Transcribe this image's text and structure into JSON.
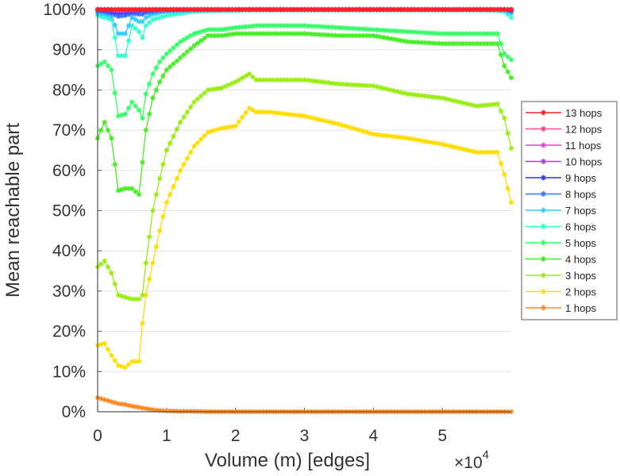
{
  "chart_data": {
    "type": "line",
    "title": "",
    "xlabel": "Volume (m) [edges]",
    "ylabel": "Mean reachable part",
    "x_multiplier_label": "×10",
    "x_multiplier_exp": "4",
    "xlim": [
      0,
      6.0
    ],
    "ylim": [
      0,
      100
    ],
    "x_ticks": [
      "0",
      "1",
      "2",
      "3",
      "4",
      "5"
    ],
    "x_tick_values": [
      0,
      1,
      2,
      3,
      4,
      5
    ],
    "y_ticks": [
      "0%",
      "10%",
      "20%",
      "30%",
      "40%",
      "50%",
      "60%",
      "70%",
      "80%",
      "90%",
      "100%"
    ],
    "y_tick_values": [
      0,
      10,
      20,
      30,
      40,
      50,
      60,
      70,
      80,
      90,
      100
    ],
    "grid": true,
    "legend_position": "right",
    "x": [
      0,
      0.1,
      0.2,
      0.3,
      0.4,
      0.5,
      0.6,
      0.65,
      0.7,
      0.8,
      0.9,
      1.0,
      1.2,
      1.4,
      1.6,
      1.8,
      2.0,
      2.2,
      2.3,
      2.5,
      3.0,
      3.5,
      4.0,
      4.5,
      5.0,
      5.5,
      5.8,
      5.9,
      6.0
    ],
    "series": [
      {
        "name": "13 hops",
        "color": "#ff2020",
        "values": [
          100,
          100,
          100,
          100,
          100,
          100,
          100,
          100,
          100,
          100,
          100,
          100,
          100,
          100,
          100,
          100,
          100,
          100,
          100,
          100,
          100,
          100,
          100,
          100,
          100,
          100,
          100,
          100,
          100
        ]
      },
      {
        "name": "12 hops",
        "color": "#ff4b8c",
        "values": [
          100,
          100,
          100,
          100,
          100,
          100,
          100,
          100,
          100,
          100,
          100,
          100,
          100,
          100,
          100,
          100,
          100,
          100,
          100,
          100,
          100,
          100,
          100,
          100,
          100,
          100,
          100,
          100,
          100
        ]
      },
      {
        "name": "11 hops",
        "color": "#ff33ee",
        "values": [
          100,
          100,
          100,
          100,
          100,
          100,
          100,
          100,
          100,
          100,
          100,
          100,
          100,
          100,
          100,
          100,
          100,
          100,
          100,
          100,
          100,
          100,
          100,
          100,
          100,
          100,
          100,
          100,
          100
        ]
      },
      {
        "name": "10 hops",
        "color": "#a040ff",
        "values": [
          100,
          100,
          99.8,
          99.6,
          99.7,
          99.8,
          99.8,
          99.9,
          100,
          100,
          100,
          100,
          100,
          100,
          100,
          100,
          100,
          100,
          100,
          100,
          100,
          100,
          100,
          100,
          100,
          100,
          100,
          100,
          100
        ]
      },
      {
        "name": "9 hops",
        "color": "#3333ff",
        "values": [
          100,
          99.8,
          99.5,
          99.2,
          99.3,
          99.6,
          99.6,
          99.7,
          99.8,
          99.9,
          100,
          100,
          100,
          100,
          100,
          100,
          100,
          100,
          100,
          100,
          100,
          100,
          100,
          100,
          100,
          100,
          100,
          100,
          99.8
        ]
      },
      {
        "name": "8 hops",
        "color": "#3377ff",
        "values": [
          99.6,
          99.4,
          99,
          98.3,
          98.5,
          99,
          98.8,
          98.8,
          99.2,
          99.5,
          99.7,
          99.8,
          99.9,
          100,
          100,
          100,
          100,
          100,
          100,
          100,
          100,
          100,
          100,
          100,
          100,
          100,
          100,
          100,
          99.6
        ]
      },
      {
        "name": "7 hops",
        "color": "#33ccff",
        "values": [
          99,
          98.8,
          98.3,
          94,
          94,
          98,
          97,
          97,
          98,
          98.8,
          99.2,
          99.5,
          99.7,
          99.8,
          99.9,
          99.9,
          100,
          100,
          100,
          100,
          100,
          100,
          100,
          100,
          100,
          100,
          100,
          99.8,
          99
        ]
      },
      {
        "name": "6 hops",
        "color": "#33ffcc",
        "values": [
          98.5,
          98,
          97.5,
          88.5,
          88.5,
          96,
          94.5,
          93,
          96,
          97.5,
          98,
          98.5,
          99,
          99.5,
          99.6,
          99.7,
          99.7,
          99.8,
          99.8,
          99.8,
          99.8,
          99.8,
          99.8,
          99.8,
          99.8,
          99.8,
          99.7,
          99.5,
          98
        ]
      },
      {
        "name": "5 hops",
        "color": "#33ff66",
        "values": [
          86,
          87,
          85,
          73.5,
          74,
          77,
          75,
          73,
          79,
          84,
          87,
          89,
          92,
          94,
          95,
          95,
          95.5,
          95.8,
          96,
          96,
          96,
          95.5,
          95,
          94.5,
          94,
          94,
          94,
          89,
          87.5
        ]
      },
      {
        "name": "4 hops",
        "color": "#44ee22",
        "values": [
          68,
          72,
          68,
          55,
          55.5,
          55.5,
          54,
          62,
          70,
          78,
          82,
          85,
          88,
          91,
          93.5,
          93.5,
          94,
          94,
          94,
          94,
          94,
          93.5,
          93.5,
          92,
          91.5,
          91.5,
          91.5,
          86,
          83
        ]
      },
      {
        "name": "3 hops",
        "color": "#99ee11",
        "values": [
          36,
          37.5,
          34.5,
          29,
          28.5,
          28,
          28,
          29,
          37,
          50,
          58,
          65,
          72,
          77,
          80,
          80.5,
          82,
          84,
          82.5,
          82.5,
          82.5,
          81.5,
          81,
          79,
          78,
          76,
          76.5,
          73,
          65.5
        ]
      },
      {
        "name": "2 hops",
        "color": "#ffdd00",
        "values": [
          16.5,
          17,
          14,
          11.5,
          11,
          12.5,
          12.5,
          22,
          29,
          37,
          45,
          52,
          60,
          66,
          69.5,
          70.5,
          71,
          75.5,
          74.5,
          74.5,
          73.5,
          71.5,
          69,
          68,
          66.5,
          64.5,
          64.5,
          59,
          52
        ]
      },
      {
        "name": "1 hops",
        "color": "#ff8822",
        "values": [
          3.5,
          3,
          2.5,
          2,
          1.8,
          1.4,
          1.1,
          0.9,
          0.8,
          0.5,
          0.3,
          0.2,
          0.1,
          0.1,
          0,
          0,
          0,
          0,
          0,
          0,
          0,
          0,
          0,
          0,
          0,
          0,
          0,
          0,
          0
        ]
      }
    ]
  }
}
